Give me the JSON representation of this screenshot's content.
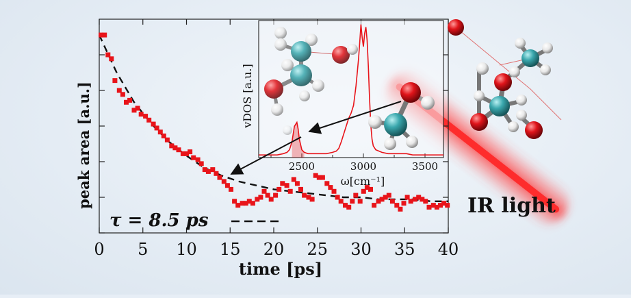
{
  "chart_data": [
    {
      "type": "scatter",
      "xlabel": "time [ps]",
      "ylabel": "peak area [a.u.]",
      "xlim": [
        0,
        40
      ],
      "ylim": [
        0,
        1.08
      ],
      "xticks": [
        "0",
        "5",
        "10",
        "15",
        "20",
        "25",
        "30",
        "35",
        "40"
      ],
      "grid": false,
      "annotation": "τ = 8.5 ps",
      "marker_color": "#e8141a",
      "fit_color": "#111111",
      "series": [
        {
          "x": [
            0.2,
            0.6,
            1.0,
            1.4,
            1.8,
            2.3,
            2.7,
            3.1,
            3.5,
            4.0,
            4.4,
            4.8,
            5.3,
            5.7,
            6.2,
            6.6,
            7.0,
            7.4,
            7.8,
            8.3,
            8.7,
            9.1,
            9.6,
            10.0,
            10.4,
            10.8,
            11.3,
            11.7,
            12.1,
            12.5,
            13.0,
            13.4,
            13.8,
            14.3,
            14.7,
            15.1,
            15.5,
            15.9,
            16.4,
            16.8,
            17.2,
            17.6,
            18.1,
            18.5,
            18.9,
            19.3,
            19.7,
            20.2,
            20.6,
            21.0,
            21.5,
            21.9,
            22.3,
            22.7,
            23.1,
            23.5,
            24.0,
            24.4,
            24.8,
            25.2,
            25.6,
            26.1,
            26.5,
            26.9,
            27.3,
            27.7,
            28.2,
            28.6,
            29.0,
            29.4,
            29.9,
            30.3,
            30.7,
            31.1,
            31.5,
            32.0,
            32.4,
            32.8,
            33.2,
            33.6,
            34.1,
            34.5,
            34.9,
            35.3,
            35.7,
            36.2,
            36.6,
            37.0,
            37.4,
            37.8,
            38.3,
            38.7,
            39.1,
            39.5,
            39.9
          ],
          "y": [
            1.0,
            1.0,
            0.9,
            0.88,
            0.77,
            0.72,
            0.7,
            0.66,
            0.67,
            0.62,
            0.63,
            0.6,
            0.59,
            0.57,
            0.55,
            0.53,
            0.51,
            0.49,
            0.47,
            0.44,
            0.43,
            0.42,
            0.4,
            0.4,
            0.41,
            0.38,
            0.37,
            0.35,
            0.32,
            0.31,
            0.32,
            0.3,
            0.28,
            0.26,
            0.24,
            0.22,
            0.16,
            0.14,
            0.15,
            0.15,
            0.16,
            0.15,
            0.17,
            0.18,
            0.21,
            0.19,
            0.17,
            0.19,
            0.22,
            0.25,
            0.24,
            0.21,
            0.27,
            0.25,
            0.22,
            0.19,
            0.18,
            0.17,
            0.29,
            0.28,
            0.28,
            0.25,
            0.23,
            0.21,
            0.18,
            0.16,
            0.14,
            0.13,
            0.16,
            0.19,
            0.16,
            0.21,
            0.23,
            0.22,
            0.14,
            0.16,
            0.17,
            0.18,
            0.19,
            0.16,
            0.14,
            0.12,
            0.15,
            0.18,
            0.16,
            0.17,
            0.18,
            0.17,
            0.16,
            0.13,
            0.14,
            0.13,
            0.14,
            0.15,
            0.14
          ]
        },
        {
          "fit_x": [
            0,
            2,
            4,
            6,
            8,
            10,
            12,
            14,
            16,
            18,
            20,
            22,
            24,
            26,
            28,
            30,
            32,
            34,
            36,
            38,
            40
          ],
          "fit_y": [
            1.0,
            0.81,
            0.66,
            0.55,
            0.46,
            0.39,
            0.33,
            0.29,
            0.26,
            0.24,
            0.22,
            0.21,
            0.2,
            0.19,
            0.18,
            0.18,
            0.17,
            0.17,
            0.17,
            0.16,
            0.16
          ]
        }
      ]
    },
    {
      "type": "line",
      "xlabel": "ω[cm⁻¹]",
      "ylabel": "vDOS [a.u.]",
      "xlim": [
        2150,
        3650
      ],
      "ylim": [
        0,
        1.05
      ],
      "xticks": [
        "2500",
        "3000",
        "3500"
      ],
      "line_color": "#e8141a",
      "highlight_peak": [
        2420,
        2520
      ],
      "x": [
        2150,
        2200,
        2250,
        2300,
        2350,
        2380,
        2400,
        2420,
        2440,
        2460,
        2470,
        2480,
        2500,
        2520,
        2550,
        2600,
        2650,
        2700,
        2750,
        2780,
        2800,
        2820,
        2840,
        2860,
        2880,
        2900,
        2920,
        2940,
        2960,
        2970,
        2980,
        2990,
        3000,
        3010,
        3020,
        3030,
        3040,
        3050,
        3060,
        3070,
        3080,
        3100,
        3150,
        3200,
        3250,
        3300,
        3350,
        3400,
        3450,
        3500,
        3550,
        3600,
        3650
      ],
      "y": [
        0.02,
        0.02,
        0.02,
        0.02,
        0.03,
        0.04,
        0.06,
        0.12,
        0.24,
        0.27,
        0.22,
        0.14,
        0.06,
        0.04,
        0.03,
        0.03,
        0.03,
        0.03,
        0.04,
        0.05,
        0.07,
        0.12,
        0.18,
        0.24,
        0.3,
        0.34,
        0.4,
        0.55,
        0.75,
        0.88,
        1.02,
        0.92,
        0.85,
        0.95,
        1.0,
        0.9,
        0.7,
        0.45,
        0.25,
        0.14,
        0.09,
        0.06,
        0.04,
        0.03,
        0.03,
        0.03,
        0.03,
        0.02,
        0.02,
        0.02,
        0.02,
        0.02,
        0.02
      ]
    }
  ],
  "ir_label": "IR light",
  "colors": {
    "oxygen": "#d3101a",
    "carbon": "#3aa7ad",
    "hydrogen": "#f2f2f2",
    "beam": "#ff2a2a"
  }
}
